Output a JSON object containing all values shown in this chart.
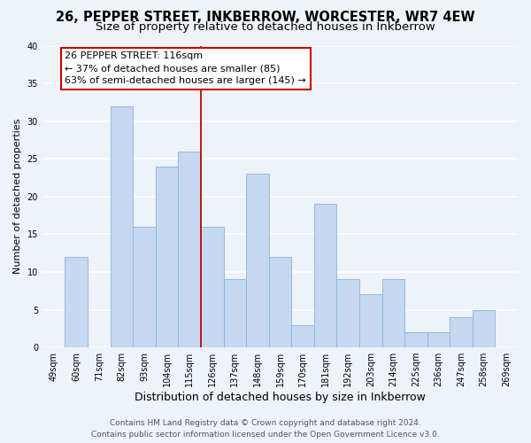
{
  "title": "26, PEPPER STREET, INKBERROW, WORCESTER, WR7 4EW",
  "subtitle": "Size of property relative to detached houses in Inkberrow",
  "xlabel": "Distribution of detached houses by size in Inkberrow",
  "ylabel": "Number of detached properties",
  "bin_labels": [
    "49sqm",
    "60sqm",
    "71sqm",
    "82sqm",
    "93sqm",
    "104sqm",
    "115sqm",
    "126sqm",
    "137sqm",
    "148sqm",
    "159sqm",
    "170sqm",
    "181sqm",
    "192sqm",
    "203sqm",
    "214sqm",
    "225sqm",
    "236sqm",
    "247sqm",
    "258sqm",
    "269sqm"
  ],
  "bar_values": [
    0,
    12,
    0,
    32,
    16,
    24,
    26,
    16,
    9,
    23,
    12,
    3,
    19,
    9,
    7,
    9,
    2,
    2,
    4,
    5,
    0
  ],
  "bar_color": "#c5d8f0",
  "bar_edge_color": "#8ab4d8",
  "background_color": "#eef2f9",
  "grid_color": "#ffffff",
  "annotation_box_text": "26 PEPPER STREET: 116sqm\n← 37% of detached houses are smaller (85)\n63% of semi-detached houses are larger (145) →",
  "annotation_box_color": "#ffffff",
  "annotation_box_edge_color": "#cc0000",
  "annotation_line_color": "#cc0000",
  "ylim": [
    0,
    40
  ],
  "yticks": [
    0,
    5,
    10,
    15,
    20,
    25,
    30,
    35,
    40
  ],
  "footer_line1": "Contains HM Land Registry data © Crown copyright and database right 2024.",
  "footer_line2": "Contains public sector information licensed under the Open Government Licence v3.0.",
  "title_fontsize": 10.5,
  "subtitle_fontsize": 9.5,
  "xlabel_fontsize": 9,
  "ylabel_fontsize": 8,
  "tick_fontsize": 7,
  "annotation_fontsize": 8,
  "footer_fontsize": 6.5
}
